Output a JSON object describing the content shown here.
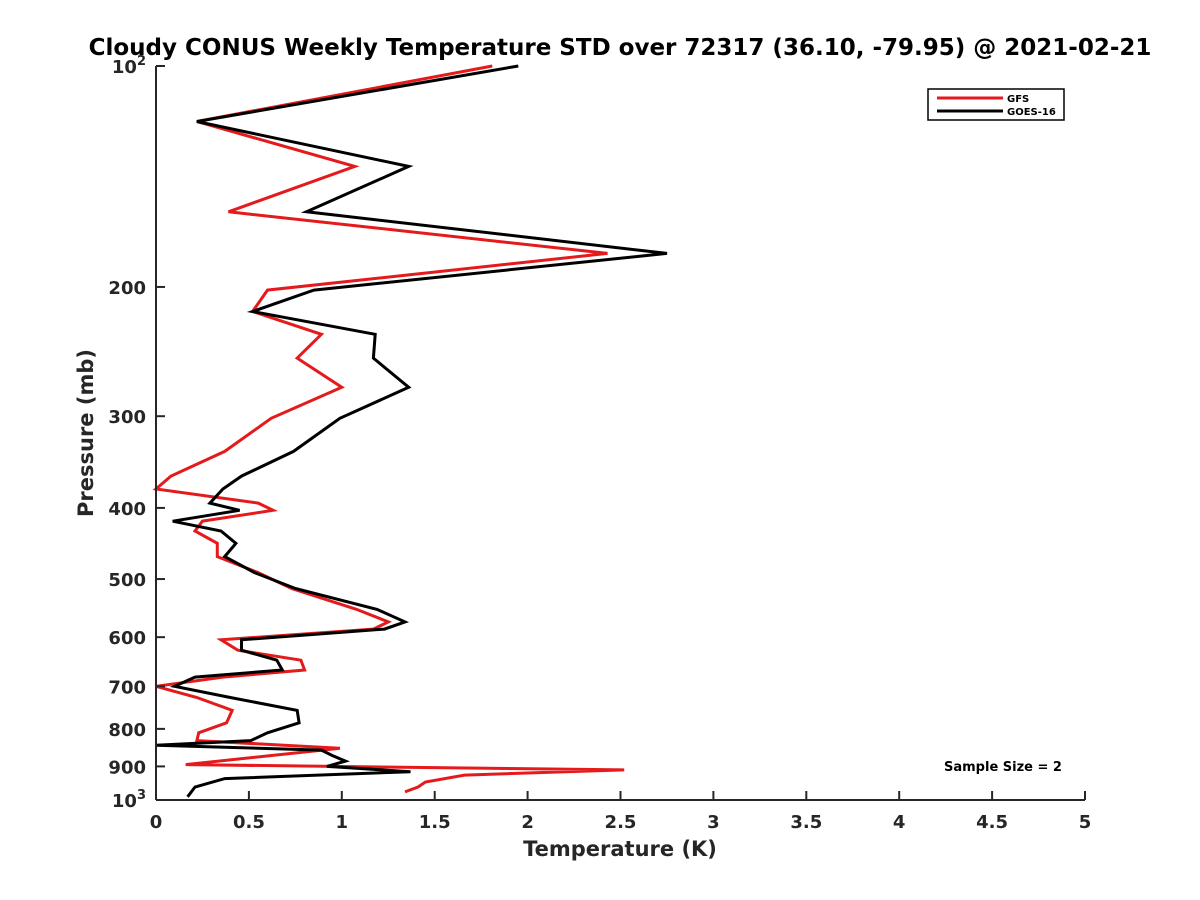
{
  "chart_data": {
    "type": "line",
    "title": "Cloudy CONUS Weekly Temperature STD over 72317 (36.10, -79.95) @ 2021-02-21",
    "xlabel": "Temperature (K)",
    "ylabel": "Pressure (mb)",
    "xlim": [
      0,
      5
    ],
    "ylim": [
      100,
      1000
    ],
    "y_scale": "log",
    "y_reversed": true,
    "x_ticks": [
      "0",
      "0.5",
      "1",
      "1.5",
      "2",
      "2.5",
      "3",
      "3.5",
      "4",
      "4.5",
      "5"
    ],
    "y_ticks": [
      {
        "value": 100,
        "base": "10",
        "exp": "2"
      },
      {
        "value": 200,
        "label": "200"
      },
      {
        "value": 300,
        "label": "300"
      },
      {
        "value": 400,
        "label": "400"
      },
      {
        "value": 500,
        "label": "500"
      },
      {
        "value": 600,
        "label": "600"
      },
      {
        "value": 700,
        "label": "700"
      },
      {
        "value": 800,
        "label": "800"
      },
      {
        "value": 900,
        "label": "900"
      },
      {
        "value": 1000,
        "base": "10",
        "exp": "3"
      }
    ],
    "grid": false,
    "legend_position": "top-right",
    "annotation": "Sample Size = 2",
    "series": [
      {
        "name": "GFS",
        "color": "#e41a1c",
        "x": [
          1.81,
          0.22,
          1.07,
          0.39,
          2.43,
          0.6,
          0.52,
          0.89,
          0.76,
          1.0,
          0.62,
          0.37,
          0.08,
          0.0,
          0.55,
          0.63,
          0.25,
          0.21,
          0.33,
          0.33,
          0.55,
          0.73,
          1.08,
          1.25,
          1.17,
          0.35,
          0.44,
          0.78,
          0.8,
          0.36,
          0.0,
          0.22,
          0.41,
          0.38,
          0.23,
          0.22,
          0.99,
          0.16,
          2.52,
          1.66,
          1.45,
          1.41,
          1.34
        ],
        "y": [
          100,
          119,
          137,
          158,
          180,
          202,
          216,
          232,
          250,
          274,
          302,
          335,
          362,
          377,
          394,
          403,
          417,
          430,
          447,
          466,
          490,
          515,
          550,
          572,
          585,
          605,
          625,
          645,
          665,
          680,
          700,
          725,
          755,
          785,
          810,
          830,
          850,
          895,
          910,
          925,
          945,
          960,
          975
        ]
      },
      {
        "name": "GOES-16",
        "color": "#000000",
        "x": [
          1.95,
          0.22,
          1.36,
          0.81,
          2.75,
          0.85,
          0.52,
          1.18,
          1.17,
          1.36,
          0.99,
          0.74,
          0.46,
          0.36,
          0.29,
          0.45,
          0.09,
          0.35,
          0.43,
          0.37,
          0.53,
          0.75,
          1.19,
          1.34,
          1.23,
          0.46,
          0.46,
          0.65,
          0.68,
          0.21,
          0.1,
          0.4,
          0.76,
          0.77,
          0.6,
          0.51,
          0.0,
          0.89,
          0.95,
          1.02,
          0.92,
          1.37,
          0.37,
          0.21,
          0.17
        ],
        "y": [
          100,
          119,
          137,
          158,
          180,
          202,
          216,
          232,
          250,
          274,
          302,
          335,
          362,
          377,
          394,
          403,
          417,
          430,
          447,
          466,
          490,
          515,
          550,
          572,
          585,
          605,
          625,
          645,
          665,
          680,
          700,
          725,
          755,
          785,
          810,
          830,
          842,
          855,
          870,
          885,
          900,
          915,
          935,
          960,
          990
        ]
      }
    ]
  }
}
